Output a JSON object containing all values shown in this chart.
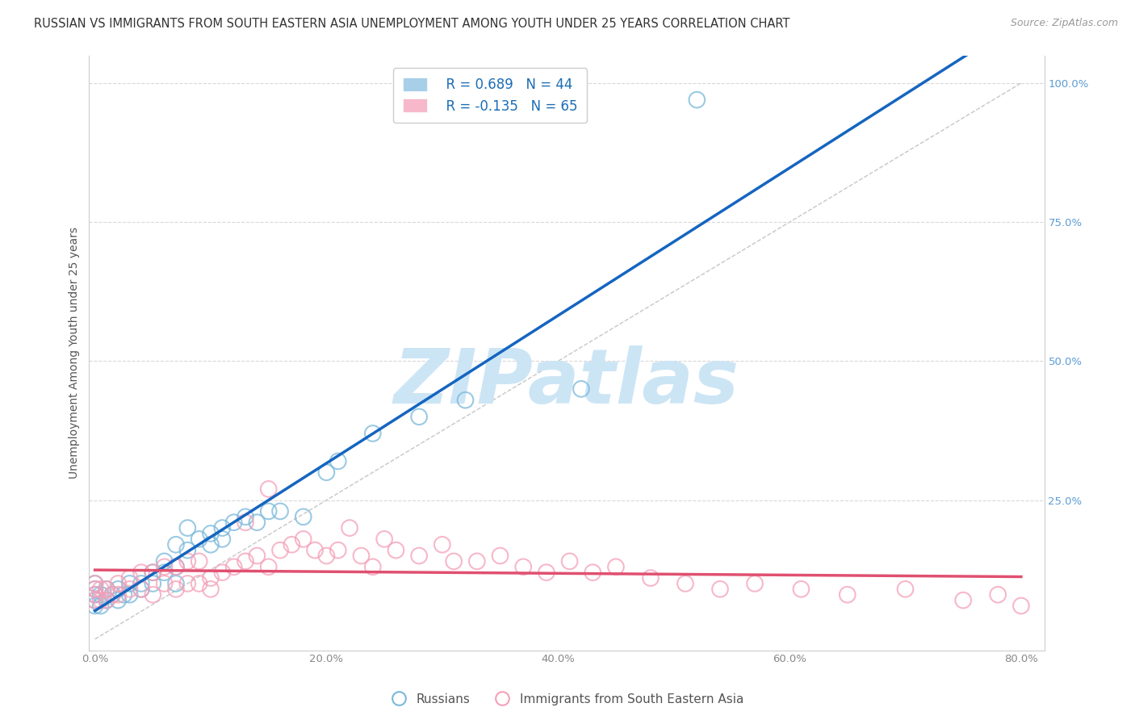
{
  "title": "RUSSIAN VS IMMIGRANTS FROM SOUTH EASTERN ASIA UNEMPLOYMENT AMONG YOUTH UNDER 25 YEARS CORRELATION CHART",
  "source": "Source: ZipAtlas.com",
  "ylabel": "Unemployment Among Youth under 25 years",
  "xlim": [
    -0.005,
    0.82
  ],
  "ylim": [
    -0.02,
    1.05
  ],
  "xticks": [
    0.0,
    0.2,
    0.4,
    0.6,
    0.8
  ],
  "yticks": [
    0.25,
    0.5,
    0.75,
    1.0
  ],
  "xticklabels": [
    "0.0%",
    "20.0%",
    "40.0%",
    "60.0%",
    "80.0%"
  ],
  "yticklabels_right": [
    "25.0%",
    "50.0%",
    "75.0%",
    "100.0%"
  ],
  "legend_series": [
    {
      "label": "Russians",
      "color": "#a8cfe8",
      "R": "0.689",
      "N": "44"
    },
    {
      "label": "Immigrants from South Eastern Asia",
      "color": "#f7b8cb",
      "R": "-0.135",
      "N": "65"
    }
  ],
  "watermark": "ZIPatlas",
  "watermark_color": "#cce5f5",
  "russians": {
    "x": [
      0.0,
      0.0,
      0.0,
      0.0,
      0.0,
      0.005,
      0.005,
      0.01,
      0.01,
      0.015,
      0.02,
      0.02,
      0.025,
      0.03,
      0.03,
      0.04,
      0.04,
      0.05,
      0.05,
      0.06,
      0.06,
      0.07,
      0.07,
      0.07,
      0.08,
      0.08,
      0.09,
      0.1,
      0.1,
      0.11,
      0.11,
      0.12,
      0.13,
      0.14,
      0.15,
      0.16,
      0.18,
      0.2,
      0.21,
      0.24,
      0.28,
      0.32,
      0.42,
      0.52
    ],
    "y": [
      0.06,
      0.07,
      0.08,
      0.09,
      0.1,
      0.06,
      0.08,
      0.07,
      0.09,
      0.08,
      0.07,
      0.09,
      0.08,
      0.08,
      0.1,
      0.09,
      0.1,
      0.1,
      0.12,
      0.12,
      0.14,
      0.1,
      0.13,
      0.17,
      0.16,
      0.2,
      0.18,
      0.17,
      0.19,
      0.18,
      0.2,
      0.21,
      0.22,
      0.21,
      0.23,
      0.23,
      0.22,
      0.3,
      0.32,
      0.37,
      0.4,
      0.43,
      0.45,
      0.97
    ],
    "color": "#7ab8da",
    "trend_color": "#1565c0",
    "R": 0.689,
    "N": 44
  },
  "sea_immigrants": {
    "x": [
      0.0,
      0.0,
      0.0,
      0.0,
      0.005,
      0.005,
      0.01,
      0.01,
      0.015,
      0.02,
      0.02,
      0.03,
      0.03,
      0.04,
      0.04,
      0.05,
      0.05,
      0.06,
      0.06,
      0.07,
      0.07,
      0.08,
      0.08,
      0.09,
      0.09,
      0.1,
      0.1,
      0.11,
      0.12,
      0.13,
      0.13,
      0.14,
      0.15,
      0.15,
      0.16,
      0.17,
      0.18,
      0.19,
      0.2,
      0.21,
      0.22,
      0.23,
      0.24,
      0.25,
      0.26,
      0.28,
      0.3,
      0.31,
      0.33,
      0.35,
      0.37,
      0.39,
      0.41,
      0.43,
      0.45,
      0.48,
      0.51,
      0.54,
      0.57,
      0.61,
      0.65,
      0.7,
      0.75,
      0.78,
      0.8
    ],
    "y": [
      0.07,
      0.08,
      0.09,
      0.1,
      0.07,
      0.09,
      0.07,
      0.09,
      0.08,
      0.08,
      0.1,
      0.09,
      0.11,
      0.09,
      0.12,
      0.08,
      0.12,
      0.1,
      0.13,
      0.09,
      0.13,
      0.1,
      0.14,
      0.1,
      0.14,
      0.09,
      0.11,
      0.12,
      0.13,
      0.14,
      0.21,
      0.15,
      0.13,
      0.27,
      0.16,
      0.17,
      0.18,
      0.16,
      0.15,
      0.16,
      0.2,
      0.15,
      0.13,
      0.18,
      0.16,
      0.15,
      0.17,
      0.14,
      0.14,
      0.15,
      0.13,
      0.12,
      0.14,
      0.12,
      0.13,
      0.11,
      0.1,
      0.09,
      0.1,
      0.09,
      0.08,
      0.09,
      0.07,
      0.08,
      0.06
    ],
    "color": "#f4a0b8",
    "trend_color": "#e05070",
    "R": -0.135,
    "N": 65
  },
  "reference_line_color": "#b8b8b8",
  "grid_color": "#d8d8d8",
  "background_color": "#ffffff",
  "title_fontsize": 10.5,
  "axis_label_fontsize": 10,
  "tick_fontsize": 9.5,
  "legend_fontsize": 12
}
